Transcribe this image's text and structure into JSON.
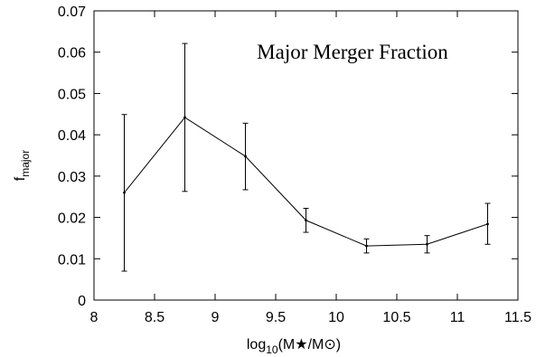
{
  "chart_data": {
    "type": "line",
    "title": "Major Merger Fraction",
    "xlabel": {
      "base": "log",
      "sub": "10",
      "rest": "(M★/M⊙)"
    },
    "ylabel": {
      "base": "f",
      "sub": "major"
    },
    "xlim": [
      8,
      11.5
    ],
    "ylim": [
      0,
      0.07
    ],
    "xticks": [
      8,
      8.5,
      9,
      9.5,
      10,
      10.5,
      11,
      11.5
    ],
    "xtick_labels": [
      "8",
      "8.5",
      "9",
      "9.5",
      "10",
      "10.5",
      "11",
      "11.5"
    ],
    "yticks": [
      0,
      0.01,
      0.02,
      0.03,
      0.04,
      0.05,
      0.06,
      0.07
    ],
    "ytick_labels": [
      "0",
      "0.01",
      "0.02",
      "0.03",
      "0.04",
      "0.05",
      "0.06",
      "0.07"
    ],
    "grid": false,
    "series": [
      {
        "x": [
          8.25,
          8.75,
          9.25,
          9.75,
          10.25,
          10.75,
          11.25
        ],
        "y": [
          0.026,
          0.0442,
          0.0348,
          0.0193,
          0.0131,
          0.0135,
          0.0184
        ],
        "err_low": [
          0.007,
          0.0263,
          0.0267,
          0.0164,
          0.0114,
          0.0114,
          0.0135
        ],
        "err_high": [
          0.0449,
          0.0621,
          0.0428,
          0.0222,
          0.0148,
          0.0156,
          0.0234
        ],
        "color": "#000000"
      }
    ]
  }
}
